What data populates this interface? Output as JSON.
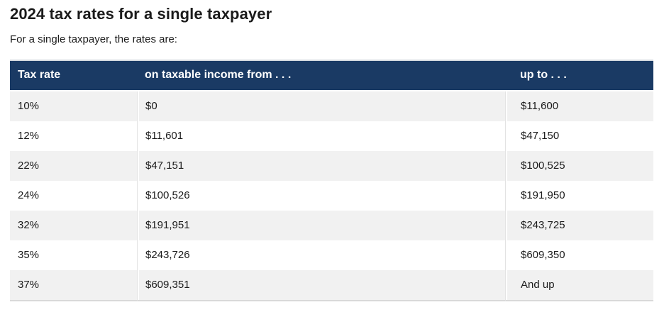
{
  "page": {
    "title": "2024 tax rates for a single taxpayer",
    "subtitle": "For a single taxpayer, the rates are:"
  },
  "table": {
    "columns": {
      "tax_rate": "Tax rate",
      "income_from": "on taxable income from . . .",
      "income_up_to": "up to . . ."
    },
    "rows": [
      [
        "10%",
        "$0",
        "$11,600"
      ],
      [
        "12%",
        "$11,601",
        "$47,150"
      ],
      [
        "22%",
        "$47,151",
        "$100,525"
      ],
      [
        "24%",
        "$100,526",
        "$191,950"
      ],
      [
        "32%",
        "$191,951",
        "$243,725"
      ],
      [
        "35%",
        "$243,726",
        "$609,350"
      ],
      [
        "37%",
        "$609,351",
        "And up"
      ]
    ]
  },
  "colors": {
    "header_bg": "#1a3a64",
    "header_text": "#ffffff",
    "row_alt_bg": "#f1f1f1",
    "table_border": "#d9d9d9",
    "text": "#1b1b1b"
  }
}
